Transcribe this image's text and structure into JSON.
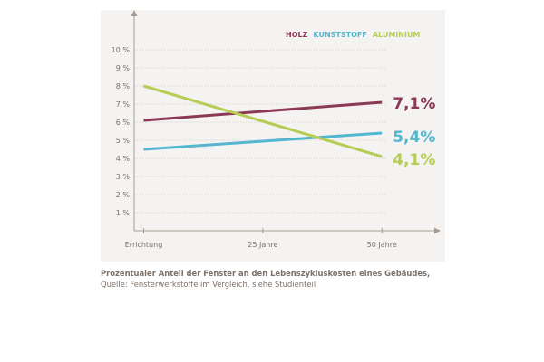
{
  "chart_data": {
    "type": "line",
    "title": "",
    "categories": [
      "Errichtung",
      "25 Jahre",
      "50 Jahre"
    ],
    "x": [
      0,
      25,
      50
    ],
    "xlim": [
      -2,
      61
    ],
    "ylim": [
      0,
      11
    ],
    "yticks": [
      1,
      2,
      3,
      4,
      5,
      6,
      7,
      8,
      9,
      10
    ],
    "ytick_labels": [
      "1 %",
      "2 %",
      "3 %",
      "4 %",
      "5 %",
      "6 %",
      "7 %",
      "8 %",
      "9 %",
      "10 %"
    ],
    "xlabel": "",
    "ylabel": "",
    "legend_position": "top-right",
    "series": [
      {
        "name": "HOLZ",
        "color": "#8b3a55",
        "values": [
          6.1,
          6.6,
          7.1
        ],
        "end_label": "7,1%"
      },
      {
        "name": "KUNSTSTOFF",
        "color": "#55b6cf",
        "values": [
          4.5,
          4.95,
          5.4
        ],
        "end_label": "5,4%"
      },
      {
        "name": "ALUMINIUM",
        "color": "#b5cd55",
        "values": [
          8.0,
          6.05,
          4.1
        ],
        "end_label": "4,1%"
      }
    ]
  },
  "caption": {
    "title": "Prozentualer Anteil der Fenster an den Lebenszykluskosten eines Gebäudes,",
    "source": "Quelle: Fensterwerkstoffe im Vergleich, siehe Studienteil"
  }
}
